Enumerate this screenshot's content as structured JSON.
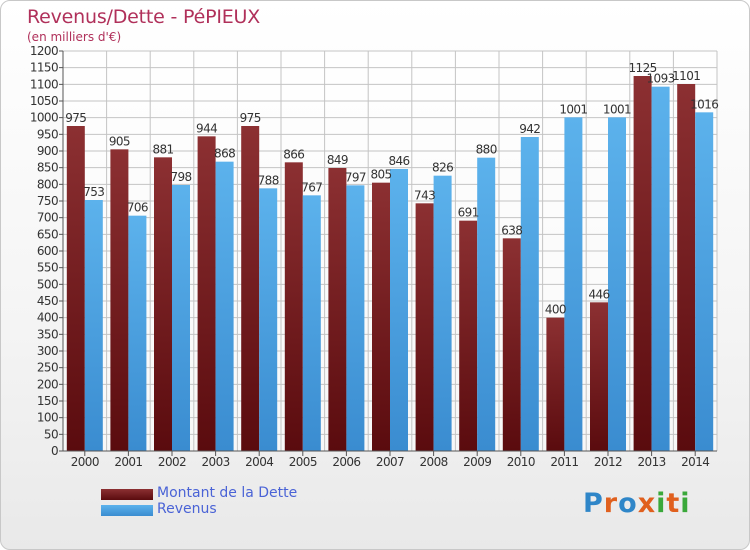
{
  "header": {
    "title": "Revenus/Dette - PéPIEUX",
    "subtitle": "(en milliers d'€)"
  },
  "legend": {
    "debt_label": "Montant de la Dette",
    "revenue_label": "Revenus"
  },
  "brand": {
    "letters": [
      "P",
      "r",
      "o",
      "x",
      "i",
      "t",
      "i"
    ],
    "colors": [
      "#2f86c8",
      "#e0601e",
      "#2f86c8",
      "#e0601e",
      "#3aa83a",
      "#e0601e",
      "#3aa83a"
    ]
  },
  "colors": {
    "debt": "#6e1418",
    "revenue": "#4ea6e4",
    "title": "#b0305a"
  },
  "chart_data": {
    "type": "bar",
    "title": "Revenus/Dette - PéPIEUX",
    "subtitle": "(en milliers d'€)",
    "xlabel": "",
    "ylabel": "",
    "ylim": [
      0,
      1200
    ],
    "yticks": [
      0,
      50,
      100,
      150,
      200,
      250,
      300,
      350,
      400,
      450,
      500,
      550,
      600,
      650,
      700,
      750,
      800,
      850,
      900,
      950,
      1000,
      1050,
      1100,
      1150,
      1200
    ],
    "grid": true,
    "legend_position": "bottom-left",
    "categories": [
      "2000",
      "2001",
      "2002",
      "2003",
      "2004",
      "2005",
      "2006",
      "2007",
      "2008",
      "2009",
      "2010",
      "2011",
      "2012",
      "2013",
      "2014"
    ],
    "series": [
      {
        "name": "Montant de la Dette",
        "values": [
          975,
          905,
          881,
          944,
          975,
          866,
          849,
          805,
          743,
          691,
          638,
          400,
          446,
          1125,
          1101
        ]
      },
      {
        "name": "Revenus",
        "values": [
          753,
          706,
          798,
          868,
          788,
          767,
          797,
          846,
          826,
          880,
          942,
          1001,
          1001,
          1093,
          1016
        ]
      }
    ]
  }
}
